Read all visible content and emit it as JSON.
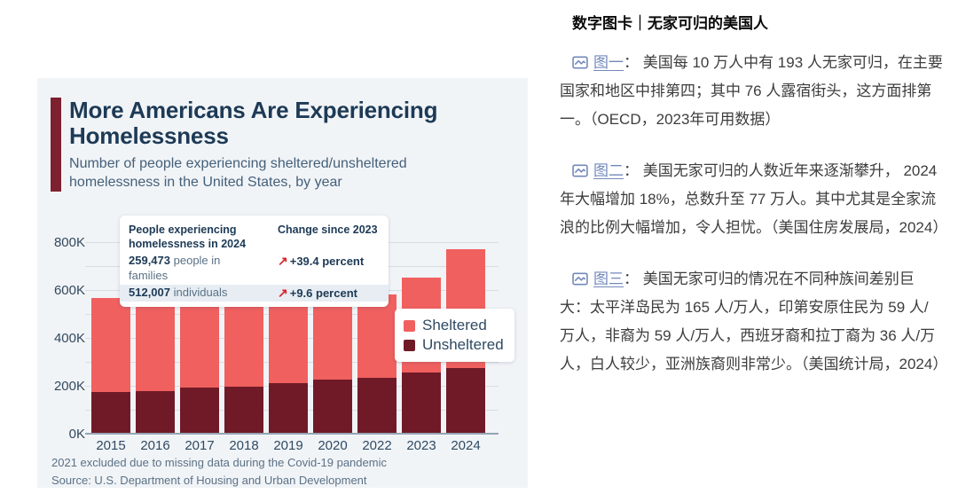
{
  "chart_card": {
    "title": "More Americans Are Experiencing Homelessness",
    "subtitle": "Number of people experiencing sheltered/unsheltered homelessness in the United States, by year",
    "accent_color": "#7d2130",
    "notes": [
      "2021 excluded due to missing data during the Covid-19 pandemic",
      "Source: U.S. Department of Housing and Urban Development"
    ],
    "infobox": {
      "col1_header": "People experiencing homelessness in 2024",
      "col2_header": "Change since 2023",
      "rows": [
        {
          "value": "259,473",
          "label": "people in families",
          "arrow": "↗",
          "change": "+39.4 percent"
        },
        {
          "value": "512,007",
          "label": "individuals",
          "arrow": "↗",
          "change": "+9.6 percent"
        }
      ]
    },
    "legend": [
      {
        "label": "Sheltered",
        "color": "#f0605f"
      },
      {
        "label": "Unsheltered",
        "color": "#701a28"
      }
    ]
  },
  "chart_data": {
    "type": "bar",
    "stacked": true,
    "title": "More Americans Are Experiencing Homelessness",
    "xlabel": "",
    "ylabel": "",
    "categories": [
      "2015",
      "2016",
      "2017",
      "2018",
      "2019",
      "2020",
      "2022",
      "2023",
      "2024"
    ],
    "series": [
      {
        "name": "Unsheltered",
        "color": "#701a28",
        "values": [
          173000,
          176000,
          193000,
          195000,
          211000,
          226000,
          234000,
          257000,
          274000
        ]
      },
      {
        "name": "Sheltered",
        "color": "#f0605f",
        "values": [
          392000,
          374000,
          358000,
          358000,
          357000,
          354000,
          348000,
          396000,
          497000
        ]
      }
    ],
    "ylim": [
      0,
      800000
    ],
    "ytick_step": 100000,
    "ytick_label_step": 200000,
    "ytick_suffix": "K",
    "grid": true,
    "legend_position": "overlay-right"
  },
  "article": {
    "heading": "数字图卡｜无家可归的美国人",
    "link_color": "#7388bb",
    "paragraphs": [
      {
        "link_label": "图一",
        "text": "： 美国每 10 万人中有 193 人无家可归，在主要国家和地区中排第四；其中 76 人露宿街头，这方面排第一。（OECD，2023年可用数据）"
      },
      {
        "link_label": "图二",
        "text": "： 美国无家可归的人数近年来逐渐攀升， 2024 年大幅增加 18%，总数升至 77 万人。其中尤其是全家流浪的比例大幅增加，令人担忧。（美国住房发展局，2024）"
      },
      {
        "link_label": "图三",
        "text": "： 美国无家可归的情况在不同种族间差别巨大：太平洋岛民为 165 人/万人，印第安原住民为 59 人/万人，非裔为 59 人/万人，西班牙裔和拉丁裔为 36 人/万人，白人较少，亚洲族裔则非常少。（美国统计局，2024）"
      }
    ]
  }
}
